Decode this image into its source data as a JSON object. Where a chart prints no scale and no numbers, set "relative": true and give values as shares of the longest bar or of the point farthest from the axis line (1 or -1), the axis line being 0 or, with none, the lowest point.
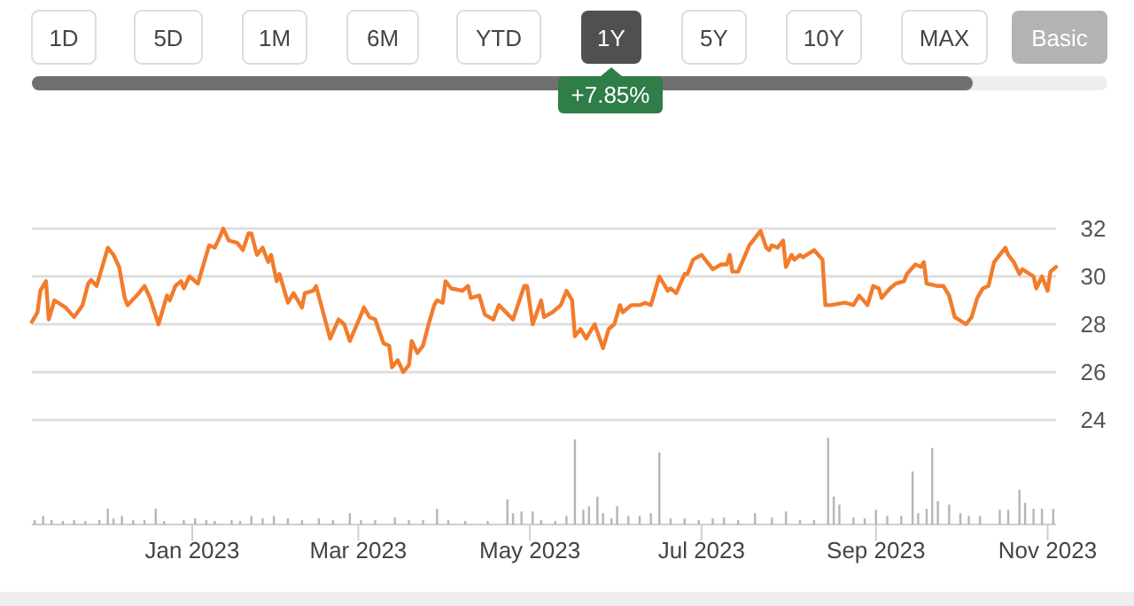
{
  "chart_data": [
    {
      "type": "line",
      "annotations": [
        "1D",
        "5D",
        "1M",
        "6M",
        "YTD",
        "1Y",
        "5Y",
        "10Y",
        "MAX",
        "Basic",
        "+7.85%"
      ],
      "xlim": [
        "2022-11-05",
        "2023-11-04"
      ],
      "ylim": [
        24,
        32
      ],
      "yticks": [
        24,
        26,
        28,
        30,
        32
      ],
      "grid": "y",
      "tick_labels": "y",
      "marker": "none",
      "series": [
        {
          "color": "#f27c2c",
          "x": [
            "2022-11-05",
            "2022-11-07",
            "2022-11-08",
            "2022-11-10",
            "2022-11-11",
            "2022-11-13",
            "2022-11-17",
            "2022-11-20",
            "2022-11-23",
            "2022-11-25",
            "2022-11-26",
            "2022-11-28",
            "2022-12-02",
            "2022-12-04",
            "2022-12-06",
            "2022-12-08",
            "2022-12-09",
            "2022-12-13",
            "2022-12-15",
            "2022-12-17",
            "2022-12-20",
            "2022-12-23",
            "2022-12-24",
            "2022-12-26",
            "2022-12-28",
            "2022-12-29",
            "2022-12-31",
            "2023-01-03",
            "2023-01-07",
            "2023-01-09",
            "2023-01-11",
            "2023-01-12",
            "2023-01-14",
            "2023-01-17",
            "2023-01-19",
            "2023-01-21",
            "2023-01-22",
            "2023-01-24",
            "2023-01-26",
            "2023-01-28",
            "2023-01-29",
            "2023-01-31",
            "2023-02-01",
            "2023-02-04",
            "2023-02-06",
            "2023-02-09",
            "2023-02-10",
            "2023-02-13",
            "2023-02-14",
            "2023-02-19",
            "2023-02-22",
            "2023-02-24",
            "2023-02-26",
            "2023-03-02",
            "2023-03-03",
            "2023-03-05",
            "2023-03-07",
            "2023-03-10",
            "2023-03-12",
            "2023-03-13",
            "2023-03-15",
            "2023-03-17",
            "2023-03-19",
            "2023-03-20",
            "2023-03-22",
            "2023-03-24",
            "2023-03-26",
            "2023-03-28",
            "2023-03-29",
            "2023-03-31",
            "2023-04-01",
            "2023-04-03",
            "2023-04-07",
            "2023-04-09",
            "2023-04-10",
            "2023-04-13",
            "2023-04-15",
            "2023-04-18",
            "2023-04-20",
            "2023-04-25",
            "2023-04-29",
            "2023-04-30",
            "2023-05-02",
            "2023-05-05",
            "2023-05-06",
            "2023-05-09",
            "2023-05-12",
            "2023-05-14",
            "2023-05-16",
            "2023-05-17",
            "2023-05-19",
            "2023-05-21",
            "2023-05-24",
            "2023-05-27",
            "2023-05-29",
            "2023-05-31",
            "2023-06-02",
            "2023-06-03",
            "2023-06-06",
            "2023-06-09",
            "2023-06-11",
            "2023-06-13",
            "2023-06-16",
            "2023-06-19",
            "2023-06-20",
            "2023-06-22",
            "2023-06-25",
            "2023-06-26",
            "2023-06-28",
            "2023-07-01",
            "2023-07-05",
            "2023-07-08",
            "2023-07-10",
            "2023-07-11",
            "2023-07-12",
            "2023-07-14",
            "2023-07-18",
            "2023-07-22",
            "2023-07-24",
            "2023-07-25",
            "2023-07-26",
            "2023-07-28",
            "2023-07-30",
            "2023-07-31",
            "2023-08-02",
            "2023-08-03",
            "2023-08-05",
            "2023-08-06",
            "2023-08-10",
            "2023-08-13",
            "2023-08-14",
            "2023-08-16",
            "2023-08-21",
            "2023-08-24",
            "2023-08-26",
            "2023-08-29",
            "2023-08-31",
            "2023-09-02",
            "2023-09-03",
            "2023-09-06",
            "2023-09-08",
            "2023-09-11",
            "2023-09-12",
            "2023-09-15",
            "2023-09-17",
            "2023-09-18",
            "2023-09-19",
            "2023-09-23",
            "2023-09-25",
            "2023-09-27",
            "2023-09-29",
            "2023-10-03",
            "2023-10-05",
            "2023-10-07",
            "2023-10-09",
            "2023-10-11",
            "2023-10-13",
            "2023-10-15",
            "2023-10-17",
            "2023-10-18",
            "2023-10-20",
            "2023-10-22",
            "2023-10-23",
            "2023-10-27",
            "2023-10-28",
            "2023-10-30",
            "2023-11-01",
            "2023-11-02",
            "2023-11-04"
          ],
          "values": [
            28.1,
            28.5,
            29.4,
            29.8,
            28.2,
            29.0,
            28.7,
            28.3,
            28.8,
            29.7,
            29.85,
            29.6,
            31.2,
            30.9,
            30.4,
            29.1,
            28.8,
            29.3,
            29.6,
            29.1,
            28.0,
            29.2,
            29.0,
            29.6,
            29.8,
            29.5,
            30.0,
            29.7,
            31.3,
            31.2,
            31.7,
            32.0,
            31.5,
            31.4,
            31.1,
            31.8,
            31.8,
            30.9,
            31.2,
            30.6,
            30.9,
            29.8,
            30.1,
            28.9,
            29.3,
            28.7,
            29.3,
            29.4,
            29.6,
            27.4,
            28.2,
            28.0,
            27.3,
            28.4,
            28.7,
            28.3,
            28.2,
            27.2,
            27.1,
            26.2,
            26.5,
            26.0,
            26.3,
            27.3,
            26.8,
            27.1,
            28.0,
            28.8,
            29.0,
            28.9,
            29.8,
            29.5,
            29.4,
            29.6,
            29.1,
            29.2,
            28.4,
            28.2,
            28.8,
            28.2,
            29.6,
            29.6,
            28.0,
            29.0,
            28.3,
            28.5,
            28.8,
            29.4,
            29.0,
            27.5,
            27.8,
            27.4,
            28.0,
            27.0,
            27.8,
            28.0,
            28.8,
            28.5,
            28.8,
            28.8,
            28.9,
            28.8,
            30.0,
            29.4,
            29.5,
            29.3,
            30.1,
            30.1,
            30.7,
            30.9,
            30.3,
            30.5,
            30.5,
            30.9,
            30.2,
            30.2,
            31.3,
            31.9,
            31.2,
            31.1,
            31.3,
            31.2,
            31.5,
            30.4,
            30.9,
            30.7,
            30.9,
            30.8,
            31.1,
            30.7,
            28.8,
            28.8,
            28.9,
            28.8,
            29.2,
            28.8,
            29.6,
            29.5,
            29.1,
            29.5,
            29.7,
            29.8,
            30.1,
            30.5,
            30.4,
            30.6,
            29.7,
            29.6,
            29.6,
            29.2,
            28.3,
            28.0,
            28.3,
            29.1,
            29.5,
            29.6,
            30.6,
            30.9,
            31.2,
            30.9,
            30.6,
            30.1,
            30.3,
            30.0,
            29.5,
            30.0,
            29.4,
            30.2,
            30.4
          ]
        }
      ]
    },
    {
      "type": "bar",
      "relative": true,
      "tick_labels": "x",
      "color": "#b5b5b5",
      "xlim": [
        "2022-11-05",
        "2023-11-04"
      ],
      "xticks": [
        {
          "value": "2023-01-01",
          "label": "Jan 2023"
        },
        {
          "value": "2023-03-01",
          "label": "Mar 2023"
        },
        {
          "value": "2023-05-01",
          "label": "May 2023"
        },
        {
          "value": "2023-07-01",
          "label": "Jul 2023"
        },
        {
          "value": "2023-09-01",
          "label": "Sep 2023"
        },
        {
          "value": "2023-11-01",
          "label": "Nov 2023"
        }
      ],
      "x": [
        "2022-11-06",
        "2022-11-09",
        "2022-11-12",
        "2022-11-16",
        "2022-11-20",
        "2022-11-24",
        "2022-11-29",
        "2022-12-02",
        "2022-12-04",
        "2022-12-07",
        "2022-12-11",
        "2022-12-15",
        "2022-12-19",
        "2022-12-22",
        "2022-12-29",
        "2023-01-02",
        "2023-01-06",
        "2023-01-09",
        "2023-01-15",
        "2023-01-18",
        "2023-01-22",
        "2023-01-26",
        "2023-01-30",
        "2023-02-04",
        "2023-02-09",
        "2023-02-15",
        "2023-02-20",
        "2023-02-26",
        "2023-03-02",
        "2023-03-07",
        "2023-03-14",
        "2023-03-19",
        "2023-03-24",
        "2023-03-29",
        "2023-04-02",
        "2023-04-08",
        "2023-04-16",
        "2023-04-23",
        "2023-04-25",
        "2023-04-28",
        "2023-05-02",
        "2023-05-05",
        "2023-05-10",
        "2023-05-14",
        "2023-05-17",
        "2023-05-20",
        "2023-05-22",
        "2023-05-25",
        "2023-05-27",
        "2023-05-30",
        "2023-06-01",
        "2023-06-05",
        "2023-06-09",
        "2023-06-13",
        "2023-06-16",
        "2023-06-20",
        "2023-06-25",
        "2023-06-30",
        "2023-07-05",
        "2023-07-09",
        "2023-07-14",
        "2023-07-20",
        "2023-07-26",
        "2023-07-31",
        "2023-08-05",
        "2023-08-10",
        "2023-08-15",
        "2023-08-17",
        "2023-08-19",
        "2023-08-24",
        "2023-08-28",
        "2023-09-01",
        "2023-09-05",
        "2023-09-10",
        "2023-09-14",
        "2023-09-16",
        "2023-09-19",
        "2023-09-21",
        "2023-09-23",
        "2023-09-27",
        "2023-10-01",
        "2023-10-04",
        "2023-10-08",
        "2023-10-15",
        "2023-10-18",
        "2023-10-22",
        "2023-10-24",
        "2023-10-27",
        "2023-10-30",
        "2023-11-03"
      ],
      "values": [
        0.05,
        0.1,
        0.05,
        0.04,
        0.05,
        0.04,
        0.05,
        0.18,
        0.07,
        0.1,
        0.05,
        0.05,
        0.18,
        0.04,
        0.05,
        0.07,
        0.05,
        0.04,
        0.05,
        0.04,
        0.1,
        0.07,
        0.1,
        0.07,
        0.05,
        0.07,
        0.05,
        0.13,
        0.05,
        0.05,
        0.08,
        0.05,
        0.05,
        0.18,
        0.05,
        0.04,
        0.04,
        0.29,
        0.13,
        0.15,
        0.15,
        0.05,
        0.04,
        0.1,
        0.98,
        0.17,
        0.21,
        0.32,
        0.13,
        0.07,
        0.21,
        0.1,
        0.1,
        0.13,
        0.83,
        0.07,
        0.07,
        0.05,
        0.07,
        0.08,
        0.05,
        0.13,
        0.08,
        0.15,
        0.05,
        0.05,
        1,
        0.32,
        0.23,
        0.08,
        0.07,
        0.17,
        0.1,
        0.1,
        0.61,
        0.13,
        0.18,
        0.88,
        0.27,
        0.23,
        0.13,
        0.1,
        0.1,
        0.17,
        0.17,
        0.4,
        0.25,
        0.18,
        0.18,
        0.18
      ]
    }
  ]
}
